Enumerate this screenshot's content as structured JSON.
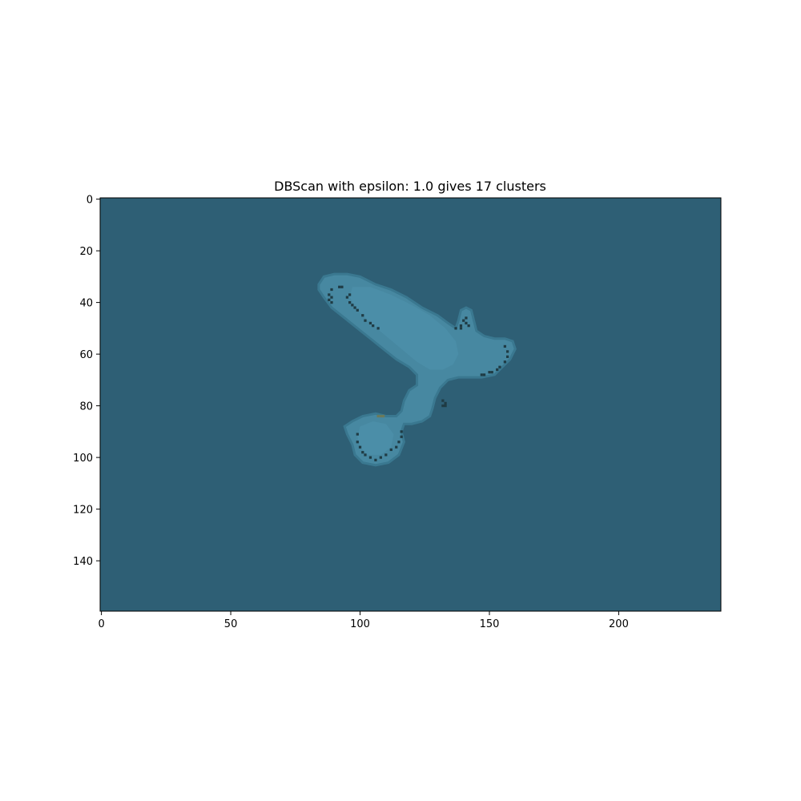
{
  "chart_data": {
    "type": "heatmap",
    "title": "DBScan with epsilon: 1.0 gives 17 clusters",
    "xlabel": "",
    "ylabel": "",
    "image_width": 240,
    "image_height": 160,
    "xlim": [
      -0.5,
      239.5
    ],
    "ylim": [
      159.5,
      -0.5
    ],
    "x_ticks": [
      0,
      50,
      100,
      150,
      200
    ],
    "y_ticks": [
      0,
      20,
      40,
      60,
      80,
      100,
      120,
      140
    ],
    "grid": false,
    "legend": "none",
    "colors": {
      "background_cluster": "#2e5f75",
      "object_cluster": "#4788a1",
      "object_core_cluster": "#4b8ea8",
      "edge_cluster": "#3a7890",
      "noise_points": "#1f3b44",
      "small_cluster": "#6b7a5a"
    },
    "regions": [
      {
        "label": "background",
        "color_key": "background_cluster"
      },
      {
        "label": "object-body",
        "color_key": "object_cluster",
        "outline": [
          [
            84,
            33
          ],
          [
            86,
            30
          ],
          [
            90,
            29
          ],
          [
            95,
            29
          ],
          [
            100,
            30
          ],
          [
            106,
            33
          ],
          [
            112,
            35
          ],
          [
            118,
            38
          ],
          [
            124,
            42
          ],
          [
            130,
            45
          ],
          [
            134,
            48
          ],
          [
            137,
            50
          ],
          [
            138,
            47
          ],
          [
            139,
            43
          ],
          [
            141,
            42
          ],
          [
            143,
            43
          ],
          [
            144,
            47
          ],
          [
            145,
            51
          ],
          [
            148,
            53
          ],
          [
            152,
            54
          ],
          [
            156,
            54
          ],
          [
            159,
            55
          ],
          [
            160,
            58
          ],
          [
            158,
            62
          ],
          [
            155,
            65
          ],
          [
            152,
            68
          ],
          [
            147,
            69
          ],
          [
            142,
            69
          ],
          [
            138,
            69
          ],
          [
            134,
            70
          ],
          [
            131,
            73
          ],
          [
            129,
            77
          ],
          [
            128,
            81
          ],
          [
            127,
            84
          ],
          [
            124,
            86
          ],
          [
            120,
            87
          ],
          [
            117,
            87
          ],
          [
            116,
            90
          ],
          [
            117,
            94
          ],
          [
            115,
            99
          ],
          [
            111,
            102
          ],
          [
            106,
            103
          ],
          [
            101,
            102
          ],
          [
            98,
            99
          ],
          [
            97,
            95
          ],
          [
            95,
            91
          ],
          [
            94,
            88
          ],
          [
            97,
            86
          ],
          [
            101,
            84
          ],
          [
            106,
            83
          ],
          [
            110,
            84
          ],
          [
            114,
            84
          ],
          [
            116,
            82
          ],
          [
            117,
            78
          ],
          [
            119,
            74
          ],
          [
            122,
            72
          ],
          [
            122,
            68
          ],
          [
            119,
            65
          ],
          [
            114,
            62
          ],
          [
            109,
            58
          ],
          [
            104,
            54
          ],
          [
            99,
            50
          ],
          [
            94,
            46
          ],
          [
            89,
            42
          ],
          [
            86,
            38
          ],
          [
            84,
            35
          ]
        ]
      },
      {
        "label": "object-core",
        "color_key": "object_core_cluster",
        "outline": [
          [
            97,
            34
          ],
          [
            104,
            34
          ],
          [
            112,
            37
          ],
          [
            120,
            41
          ],
          [
            127,
            45
          ],
          [
            133,
            50
          ],
          [
            137,
            55
          ],
          [
            138,
            60
          ],
          [
            136,
            64
          ],
          [
            132,
            66
          ],
          [
            127,
            66
          ],
          [
            122,
            63
          ],
          [
            116,
            58
          ],
          [
            110,
            53
          ],
          [
            104,
            48
          ],
          [
            99,
            43
          ],
          [
            96,
            38
          ]
        ]
      },
      {
        "label": "lower-lobe",
        "color_key": "object_core_cluster",
        "outline": [
          [
            100,
            88
          ],
          [
            105,
            86
          ],
          [
            110,
            87
          ],
          [
            113,
            91
          ],
          [
            112,
            96
          ],
          [
            108,
            99
          ],
          [
            103,
            99
          ],
          [
            100,
            96
          ],
          [
            99,
            92
          ]
        ]
      }
    ],
    "noise_points": [
      [
        88,
        37
      ],
      [
        89,
        38
      ],
      [
        89,
        35
      ],
      [
        92,
        34
      ],
      [
        93,
        34
      ],
      [
        95,
        38
      ],
      [
        96,
        40
      ],
      [
        97,
        41
      ],
      [
        98,
        42
      ],
      [
        99,
        43
      ],
      [
        101,
        45
      ],
      [
        102,
        47
      ],
      [
        104,
        48
      ],
      [
        105,
        49
      ],
      [
        107,
        50
      ],
      [
        96,
        37
      ],
      [
        88,
        39
      ],
      [
        89,
        40
      ],
      [
        139,
        49
      ],
      [
        140,
        47
      ],
      [
        141,
        48
      ],
      [
        142,
        49
      ],
      [
        139,
        50
      ],
      [
        137,
        50
      ],
      [
        141,
        46
      ],
      [
        156,
        57
      ],
      [
        157,
        59
      ],
      [
        157,
        61
      ],
      [
        156,
        63
      ],
      [
        154,
        65
      ],
      [
        153,
        66
      ],
      [
        151,
        67
      ],
      [
        150,
        67
      ],
      [
        148,
        68
      ],
      [
        147,
        68
      ],
      [
        132,
        78
      ],
      [
        133,
        79
      ],
      [
        132,
        80
      ],
      [
        133,
        80
      ],
      [
        99,
        91
      ],
      [
        99,
        94
      ],
      [
        100,
        96
      ],
      [
        101,
        98
      ],
      [
        102,
        99
      ],
      [
        104,
        100
      ],
      [
        106,
        101
      ],
      [
        108,
        100
      ],
      [
        110,
        99
      ],
      [
        112,
        97
      ],
      [
        114,
        96
      ],
      [
        115,
        94
      ],
      [
        116,
        92
      ],
      [
        116,
        90
      ]
    ],
    "small_clusters": [
      [
        107,
        84
      ],
      [
        108,
        84
      ],
      [
        109,
        84
      ]
    ]
  }
}
